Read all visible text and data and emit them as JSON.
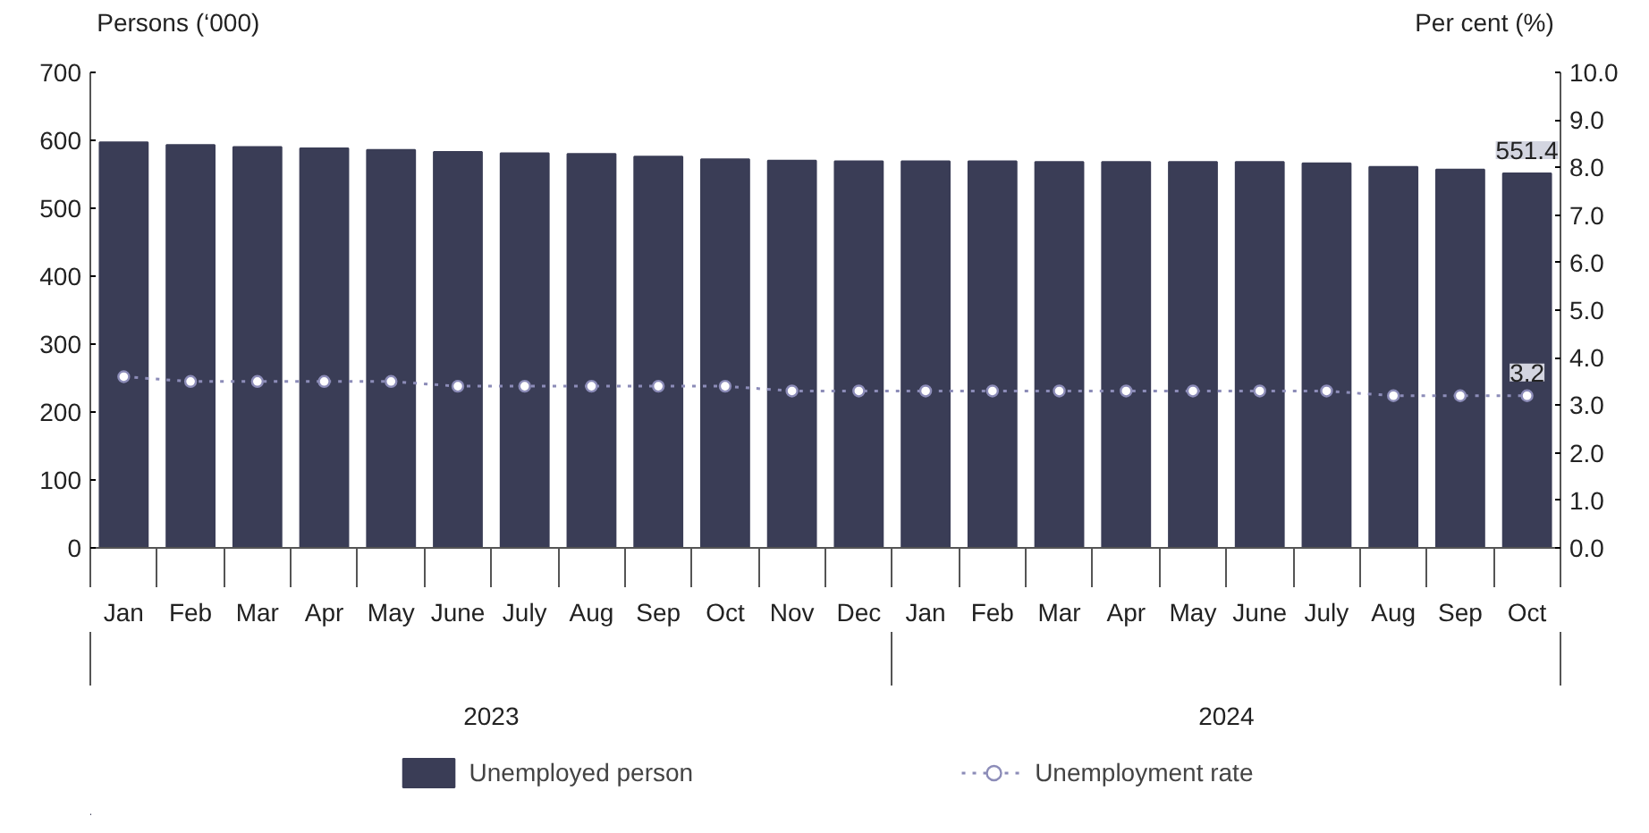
{
  "chart_data": {
    "type": "bar",
    "categories": [
      "Jan",
      "Feb",
      "Mar",
      "Apr",
      "May",
      "June",
      "July",
      "Aug",
      "Sep",
      "Oct",
      "Nov",
      "Dec",
      "Jan",
      "Feb",
      "Mar",
      "Apr",
      "May",
      "June",
      "July",
      "Aug",
      "Sep",
      "Oct"
    ],
    "ylabel": "Persons (‘000)",
    "y2label": "Per cent (%)",
    "series": [
      {
        "name": "Unemployed person",
        "color": "#3a3d56",
        "values": [
          597,
          593,
          590,
          588,
          586,
          583,
          581,
          580,
          576,
          572,
          570,
          569,
          569,
          569,
          568,
          568,
          568,
          568,
          566,
          561,
          557,
          551.4
        ],
        "value_labels": [
          null,
          null,
          null,
          null,
          null,
          null,
          null,
          null,
          null,
          null,
          null,
          null,
          null,
          null,
          null,
          null,
          null,
          null,
          null,
          null,
          null,
          "551.4"
        ]
      },
      {
        "name": "Unemployment rate",
        "type": "line",
        "axis": "y2",
        "color": "#8c8cb8",
        "marker": "circle",
        "line_style": "dotted",
        "values": [
          3.6,
          3.5,
          3.5,
          3.5,
          3.5,
          3.4,
          3.4,
          3.4,
          3.4,
          3.4,
          3.3,
          3.3,
          3.3,
          3.3,
          3.3,
          3.3,
          3.3,
          3.3,
          3.3,
          3.2,
          3.2,
          3.2
        ],
        "value_labels": [
          null,
          null,
          null,
          null,
          null,
          null,
          null,
          null,
          null,
          null,
          null,
          null,
          null,
          null,
          null,
          null,
          null,
          null,
          null,
          null,
          null,
          "3.2"
        ]
      }
    ],
    "ylim": [
      0,
      700
    ],
    "yticks": [
      0,
      100,
      200,
      300,
      400,
      500,
      600,
      700
    ],
    "y2lim": [
      0,
      10
    ],
    "y2ticks": [
      {
        "value": 0,
        "label": "0.0"
      },
      {
        "value": 1,
        "label": "1.0"
      },
      {
        "value": 2,
        "label": "2.0"
      },
      {
        "value": 3,
        "label": "3.0"
      },
      {
        "value": 4,
        "label": "4.0"
      },
      {
        "value": 5,
        "label": "5.0"
      },
      {
        "value": 6,
        "label": "6.0"
      },
      {
        "value": 7,
        "label": "7.0"
      },
      {
        "value": 8,
        "label": "8.0"
      },
      {
        "value": 9,
        "label": "9.0"
      },
      {
        "value": 10,
        "label": "10.0"
      }
    ],
    "annotations": [
      "2023",
      "2024"
    ],
    "grid": false,
    "legend": "bottom"
  }
}
